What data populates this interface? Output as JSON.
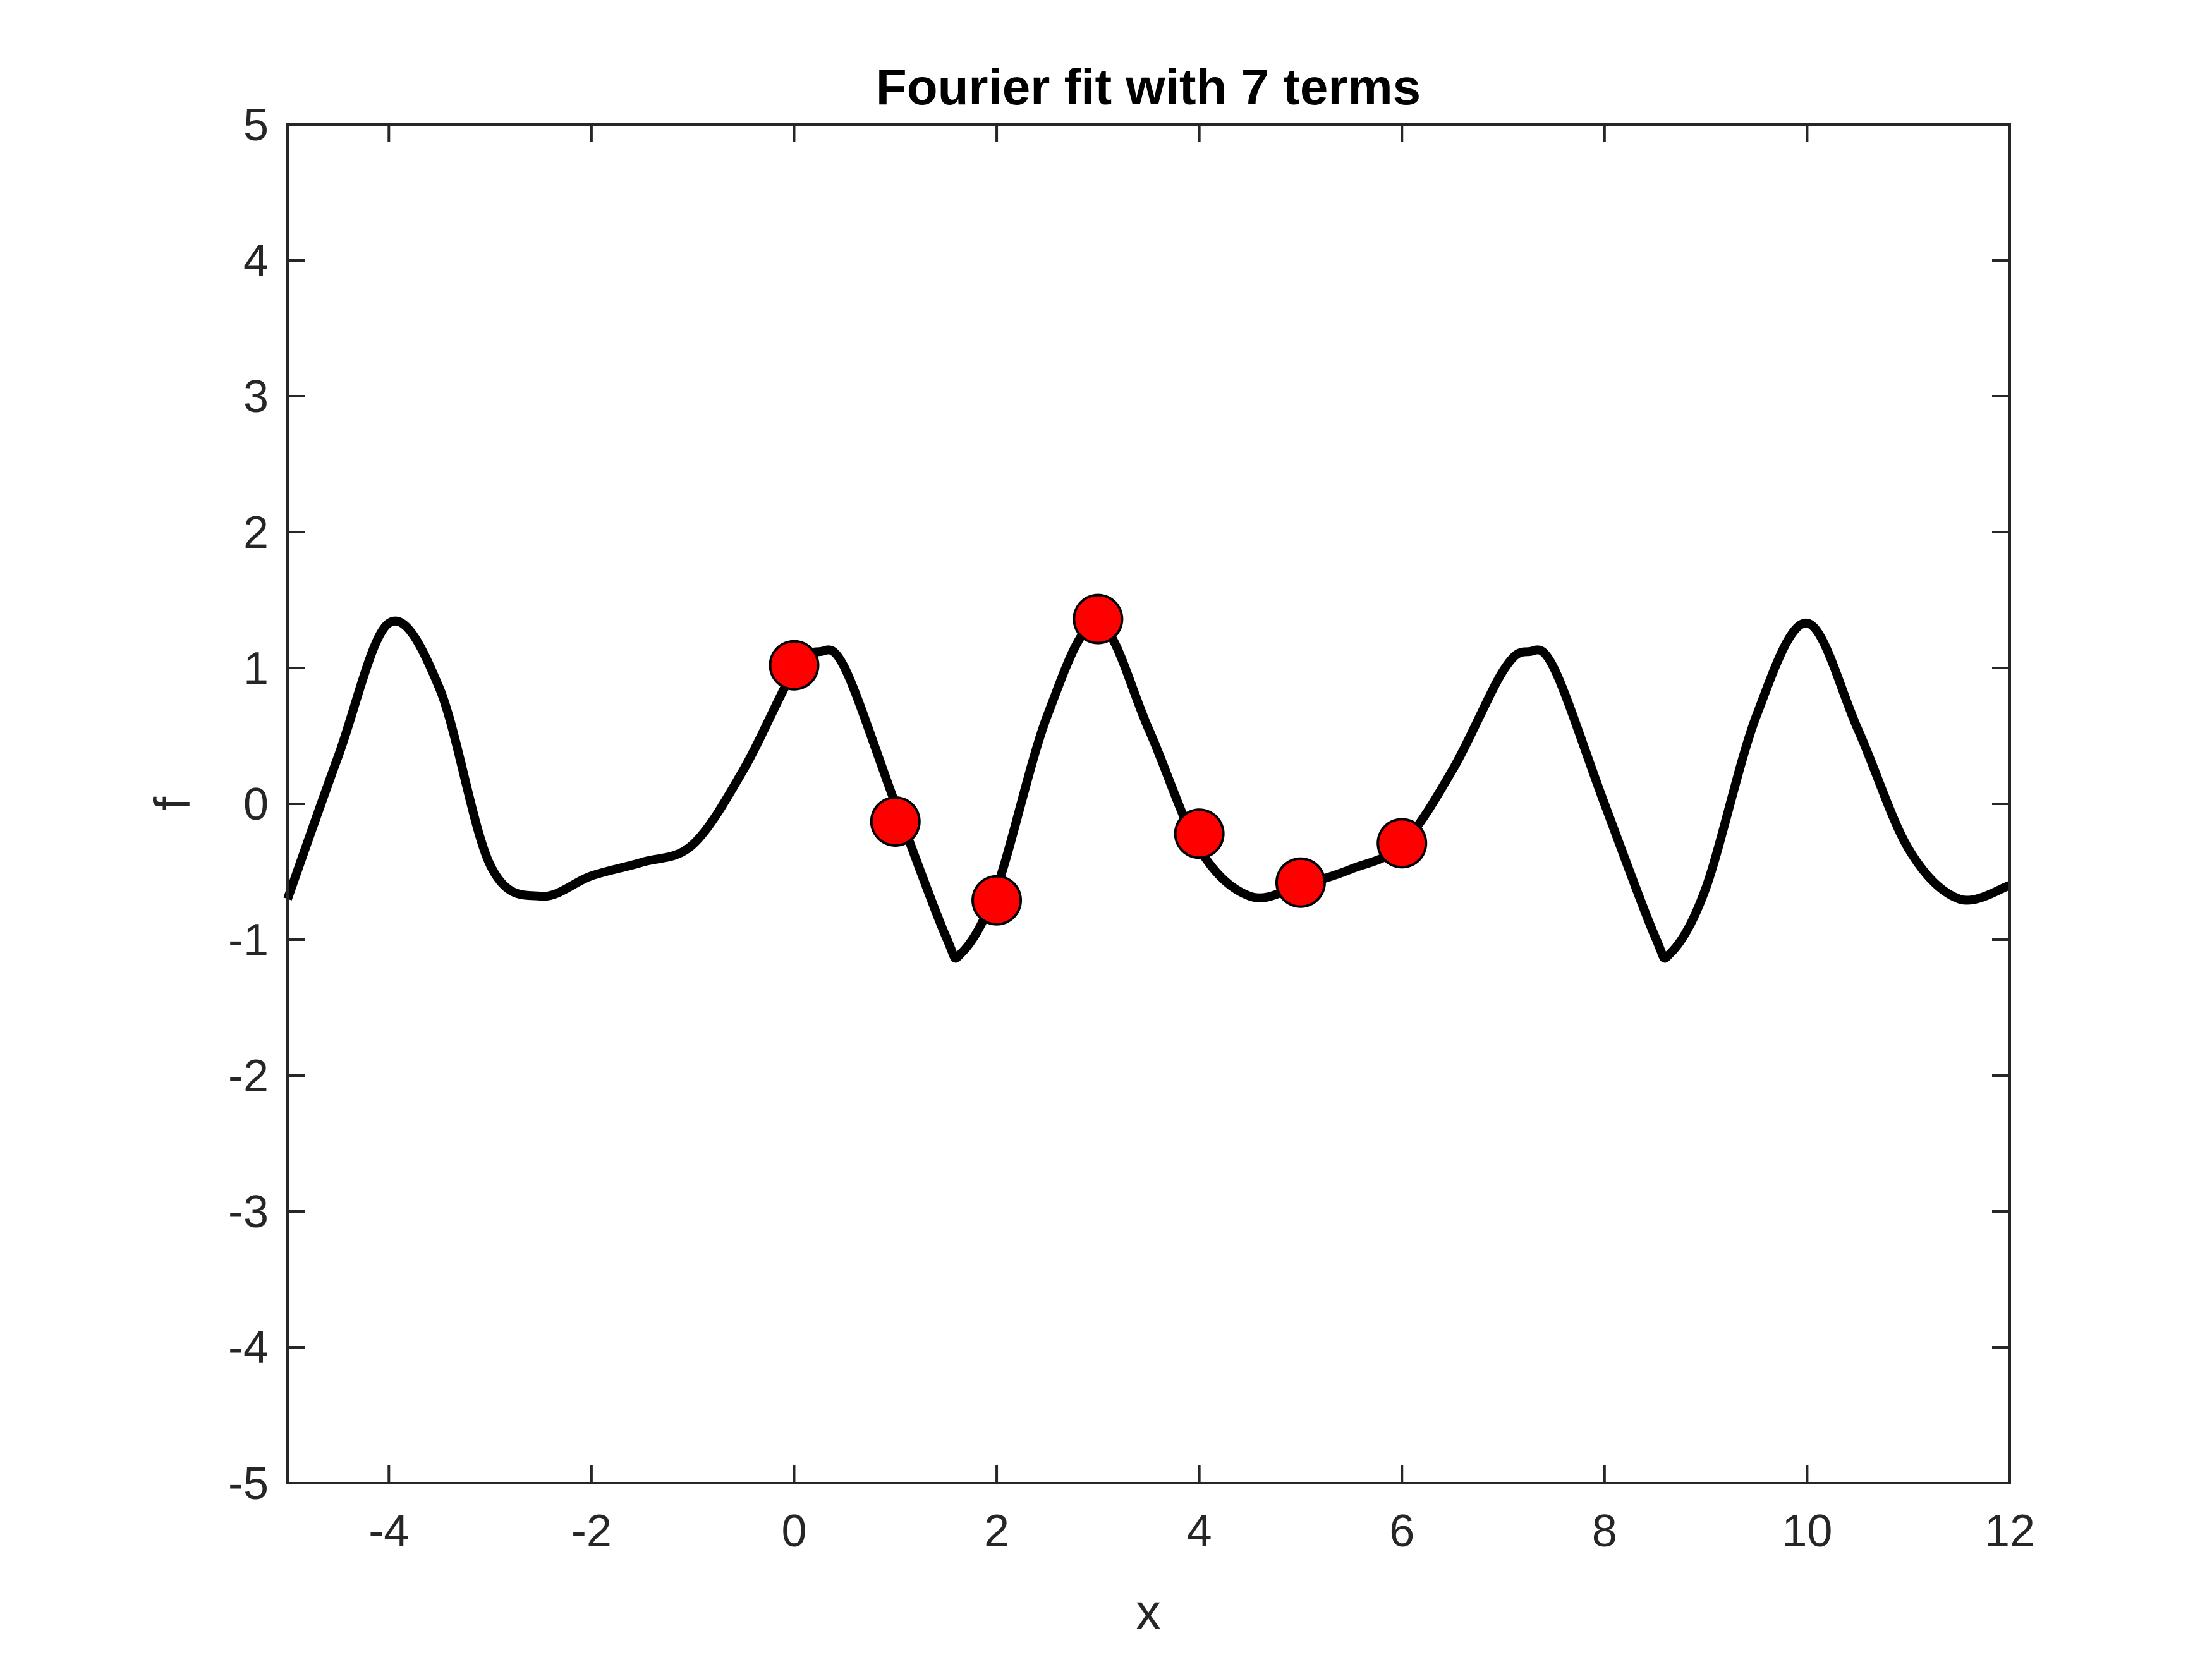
{
  "chart_data": {
    "type": "line",
    "title": "Fourier fit with 7 terms",
    "xlabel": "x",
    "ylabel": "f",
    "xlim": [
      -5,
      12
    ],
    "ylim": [
      -5,
      5
    ],
    "x_ticks": [
      "-4",
      "-2",
      "0",
      "2",
      "4",
      "6",
      "8",
      "10",
      "12"
    ],
    "y_ticks": [
      "-5",
      "-4",
      "-3",
      "-2",
      "-1",
      "0",
      "1",
      "2",
      "3",
      "4",
      "5"
    ],
    "grid": false,
    "legend": "none",
    "series": [
      {
        "kind": "line",
        "color": "#000000",
        "x": [
          -5.0,
          -4.5,
          -4.0,
          -3.5,
          -3.0,
          -2.5,
          -2.0,
          -1.5,
          -1.0,
          -0.5,
          0.0,
          0.25,
          0.5,
          1.0,
          1.5,
          1.65,
          2.0,
          2.5,
          3.0,
          3.5,
          4.0,
          4.5,
          5.0,
          5.5,
          6.0,
          6.5,
          7.0,
          7.25,
          7.5,
          8.0,
          8.5,
          8.65,
          9.0,
          9.5,
          10.0,
          10.5,
          11.0,
          11.5,
          12.0
        ],
        "y": [
          -0.7,
          0.35,
          1.33,
          0.85,
          -0.45,
          -0.68,
          -0.53,
          -0.43,
          -0.3,
          0.25,
          0.98,
          1.12,
          1.0,
          0.0,
          -0.98,
          -1.1,
          -0.62,
          0.65,
          1.33,
          0.55,
          -0.33,
          -0.68,
          -0.6,
          -0.48,
          -0.3,
          0.25,
          0.98,
          1.12,
          1.0,
          0.0,
          -0.98,
          -1.1,
          -0.62,
          0.65,
          1.33,
          0.55,
          -0.33,
          -0.7,
          -0.6
        ]
      },
      {
        "kind": "scatter",
        "color": "#ff0000",
        "x": [
          0,
          1,
          2,
          3,
          4,
          5,
          6
        ],
        "y": [
          1.02,
          -0.13,
          -0.71,
          1.36,
          -0.22,
          -0.58,
          -0.29
        ]
      }
    ]
  }
}
